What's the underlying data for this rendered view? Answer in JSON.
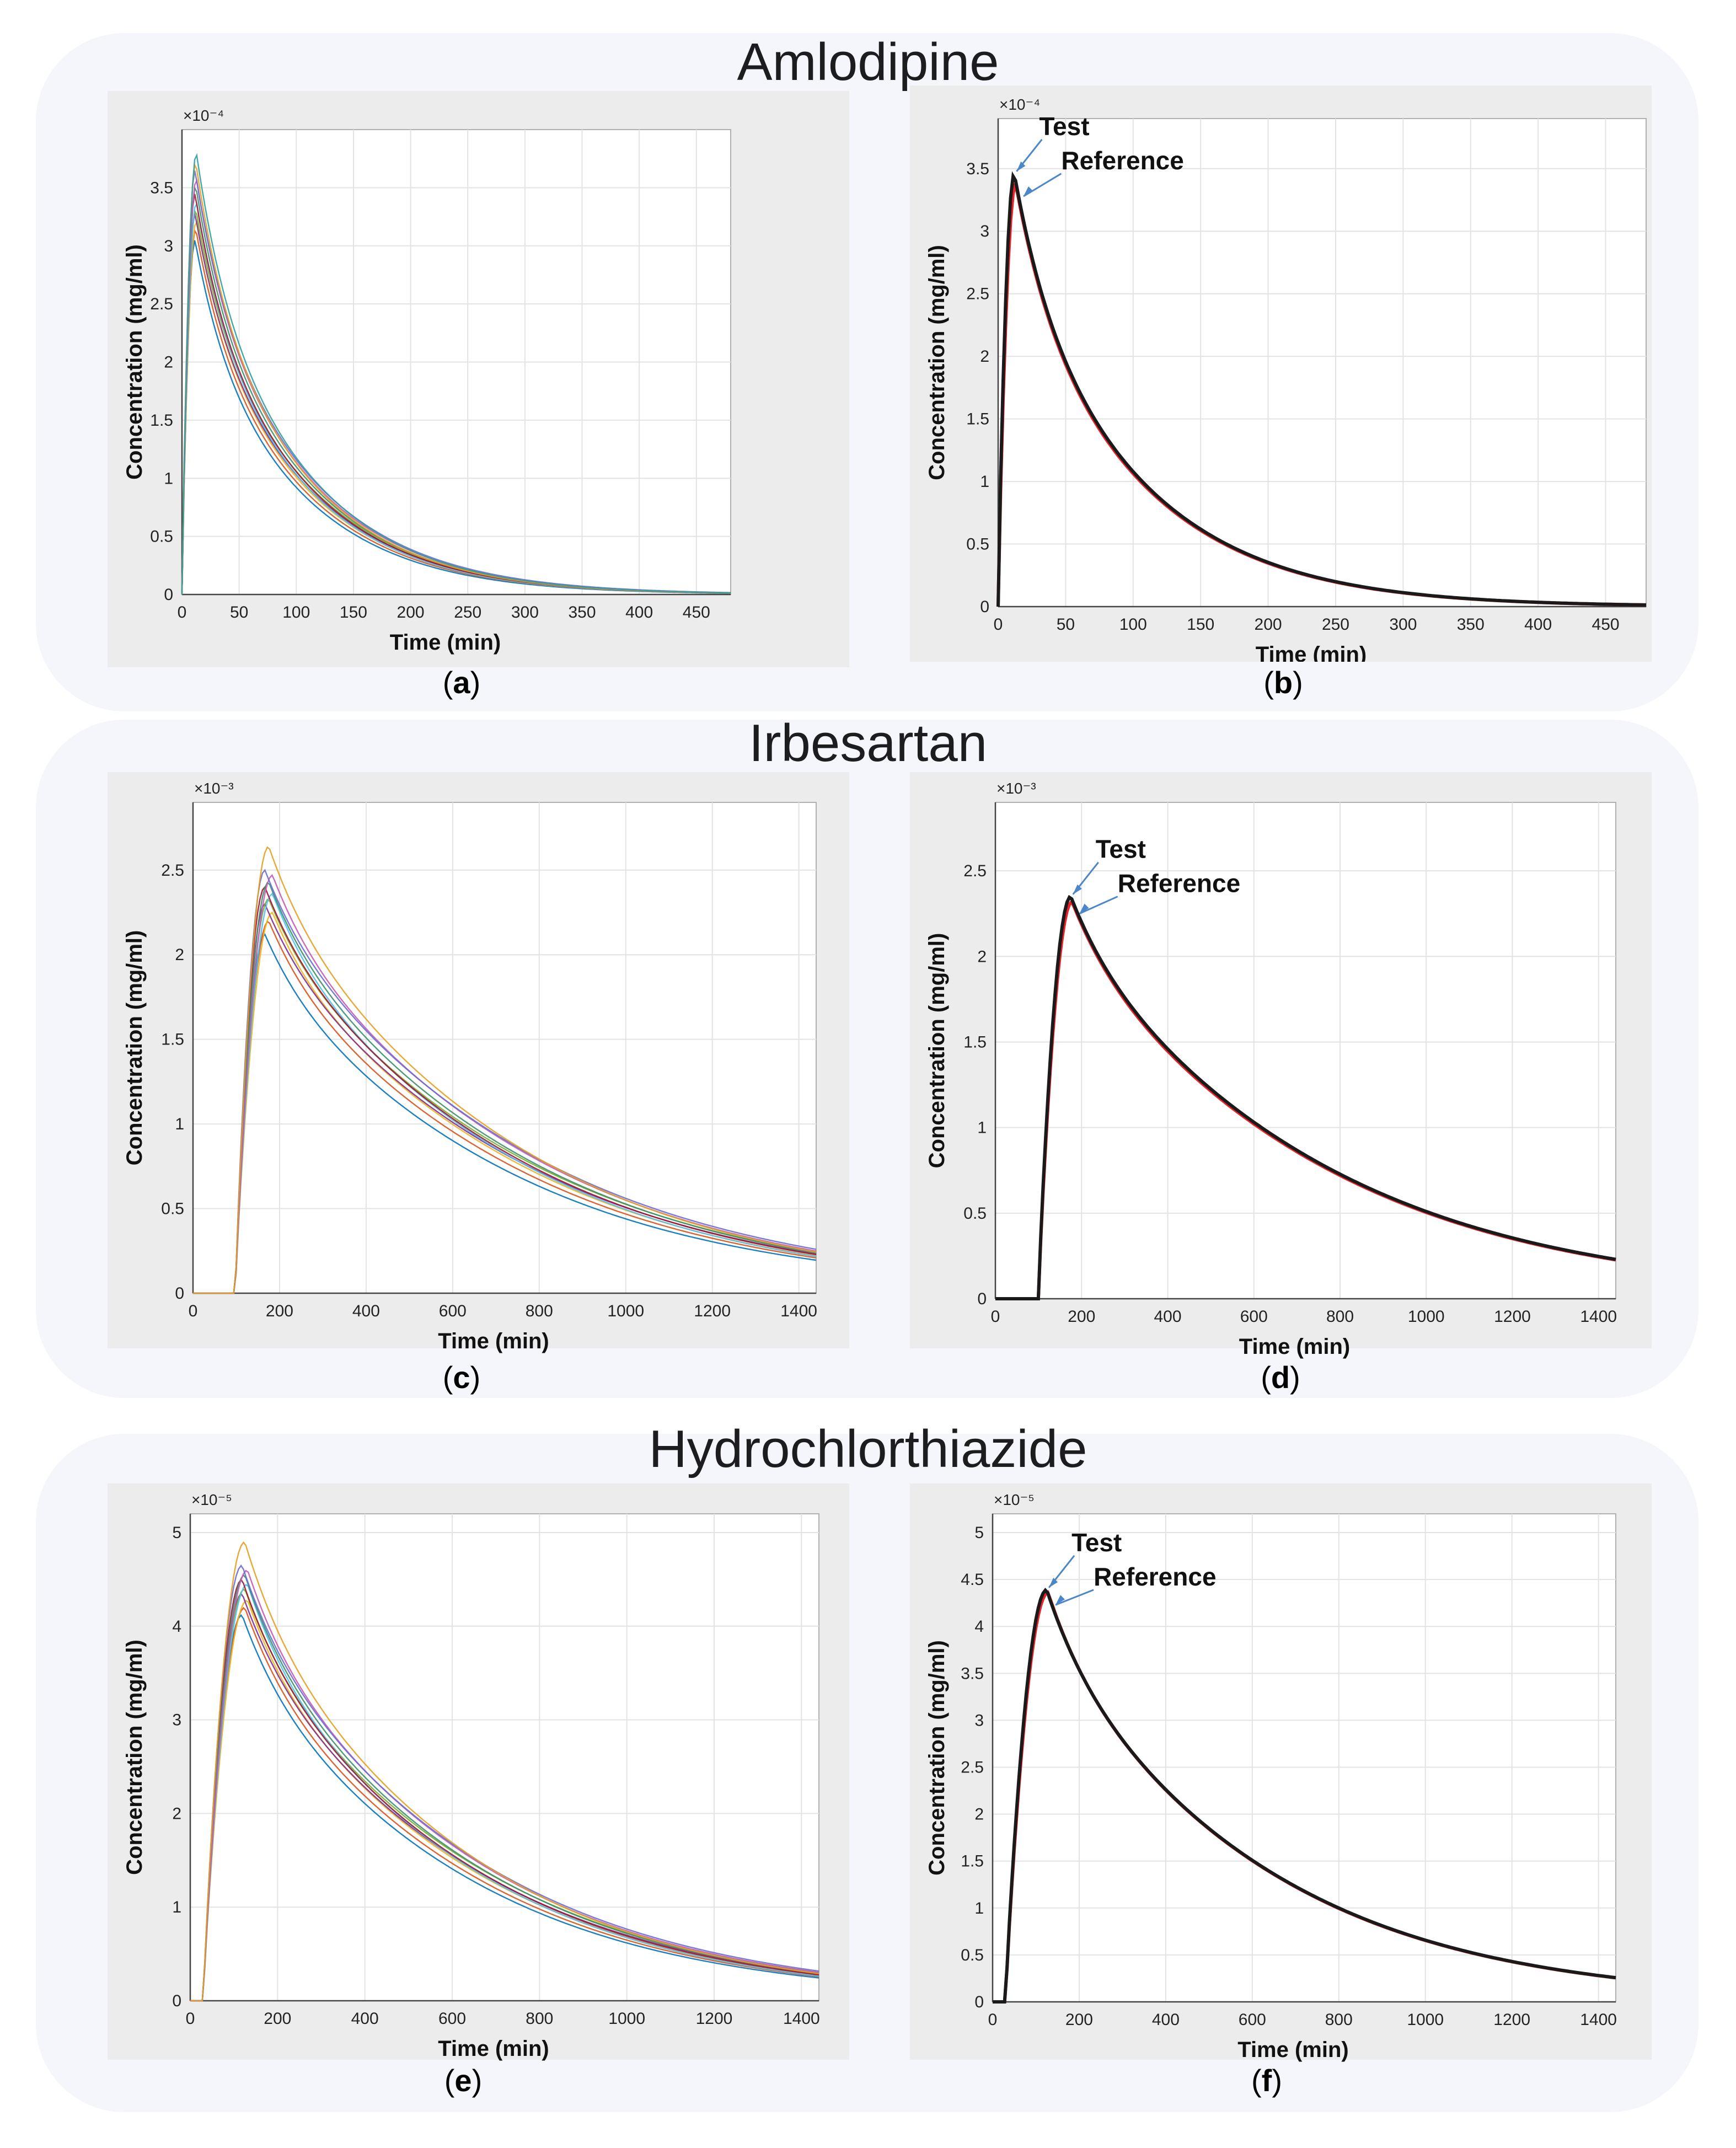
{
  "rows": [
    {
      "title": "Amlodipine"
    },
    {
      "title": "Irbesartan"
    },
    {
      "title": "Hydrochlorthiazide"
    }
  ],
  "colors": {
    "test": "#1a1a1a",
    "reference": "#e8232a",
    "arrow": "#4a86c8",
    "grid": "#e3e3e3"
  },
  "chart_data": [
    {
      "id": "a",
      "type": "line",
      "drug": "Amlodipine",
      "caption": "a",
      "xlabel": "Time (min)",
      "ylabel": "Concentration (mg/ml)",
      "multiplier": "×10⁻⁴",
      "xlim": [
        0,
        480
      ],
      "ylim": [
        0,
        4.0
      ],
      "xticks": [
        0,
        50,
        100,
        150,
        200,
        250,
        300,
        350,
        400,
        450
      ],
      "yticks": [
        0,
        0.5,
        1,
        1.5,
        2,
        2.5,
        3,
        3.5
      ],
      "ensemble": {
        "lag": 0,
        "tpeak": 12,
        "peaks": [
          3.05,
          3.15,
          3.22,
          3.28,
          3.32,
          3.38,
          3.45,
          3.52,
          3.58,
          3.65,
          3.72,
          3.8
        ],
        "tail_ratio": 0.004,
        "spread": 0.12
      }
    },
    {
      "id": "b",
      "type": "line",
      "drug": "Amlodipine",
      "caption": "b",
      "xlabel": "Time (min)",
      "ylabel": "Concentration (mg/ml)",
      "multiplier": "×10⁻⁴",
      "xlim": [
        0,
        480
      ],
      "ylim": [
        0,
        3.9
      ],
      "xticks": [
        0,
        50,
        100,
        150,
        200,
        250,
        300,
        350,
        400,
        450
      ],
      "yticks": [
        0,
        0.5,
        1,
        1.5,
        2,
        2.5,
        3,
        3.5
      ],
      "series": [
        {
          "name": "Reference",
          "lag": 0,
          "tpeak": 13,
          "peak": 3.38,
          "tail_ratio": 0.004
        },
        {
          "name": "Test",
          "lag": 0,
          "tpeak": 12,
          "peak": 3.46,
          "tail_ratio": 0.004
        }
      ],
      "labels": {
        "test": "Test",
        "reference": "Reference"
      }
    },
    {
      "id": "c",
      "type": "line",
      "drug": "Irbesartan",
      "caption": "c",
      "xlabel": "Time (min)",
      "ylabel": "Concentration (mg/ml)",
      "multiplier": "×10⁻³",
      "xlim": [
        0,
        1440
      ],
      "ylim": [
        0,
        2.9
      ],
      "xticks": [
        0,
        200,
        400,
        600,
        800,
        1000,
        1200,
        1400
      ],
      "yticks": [
        0,
        0.5,
        1,
        1.5,
        2,
        2.5
      ],
      "ensemble": {
        "lag": 98,
        "tpeak": 175,
        "peaks": [
          2.12,
          2.2,
          2.25,
          2.3,
          2.33,
          2.36,
          2.4,
          2.43,
          2.47,
          2.5,
          2.64
        ],
        "tail_ratio": 0.1,
        "spread": 0.06
      }
    },
    {
      "id": "d",
      "type": "line",
      "drug": "Irbesartan",
      "caption": "d",
      "xlabel": "Time (min)",
      "ylabel": "Concentration (mg/ml)",
      "multiplier": "×10⁻³",
      "xlim": [
        0,
        1440
      ],
      "ylim": [
        0,
        2.9
      ],
      "xticks": [
        0,
        200,
        400,
        600,
        800,
        1000,
        1200,
        1400
      ],
      "yticks": [
        0,
        0.5,
        1,
        1.5,
        2,
        2.5
      ],
      "series": [
        {
          "name": "Reference",
          "lag": 100,
          "tpeak": 178,
          "peak": 2.32,
          "tail_ratio": 0.1
        },
        {
          "name": "Test",
          "lag": 100,
          "tpeak": 175,
          "peak": 2.35,
          "tail_ratio": 0.1
        }
      ],
      "labels": {
        "test": "Test",
        "reference": "Reference"
      }
    },
    {
      "id": "e",
      "type": "line",
      "drug": "Hydrochlorthiazide",
      "caption": "e",
      "xlabel": "Time (min)",
      "ylabel": "Concentration (mg/ml)",
      "multiplier": "×10⁻⁵",
      "xlim": [
        0,
        1440
      ],
      "ylim": [
        0,
        5.2
      ],
      "xticks": [
        0,
        200,
        400,
        600,
        800,
        1000,
        1200,
        1400
      ],
      "yticks": [
        0,
        1,
        2,
        3,
        4,
        5
      ],
      "ensemble": {
        "lag": 30,
        "tpeak": 125,
        "peaks": [
          4.12,
          4.2,
          4.28,
          4.35,
          4.4,
          4.45,
          4.5,
          4.55,
          4.6,
          4.65,
          4.9
        ],
        "tail_ratio": 0.065,
        "spread": 0.07
      }
    },
    {
      "id": "f",
      "type": "line",
      "drug": "Hydrochlorthiazide",
      "caption": "f",
      "xlabel": "Time (min)",
      "ylabel": "Concentration (mg/ml)",
      "multiplier": "×10⁻⁵",
      "xlim": [
        0,
        1440
      ],
      "ylim": [
        0,
        5.2
      ],
      "xticks": [
        0,
        200,
        400,
        600,
        800,
        1000,
        1200,
        1400
      ],
      "yticks": [
        0,
        0.5,
        1,
        1.5,
        2,
        2.5,
        3,
        3.5,
        4,
        4.5,
        5
      ],
      "series": [
        {
          "name": "Reference",
          "lag": 30,
          "tpeak": 128,
          "peak": 4.36,
          "tail_ratio": 0.06
        },
        {
          "name": "Test",
          "lag": 30,
          "tpeak": 125,
          "peak": 4.39,
          "tail_ratio": 0.06
        }
      ],
      "labels": {
        "test": "Test",
        "reference": "Reference"
      }
    }
  ]
}
